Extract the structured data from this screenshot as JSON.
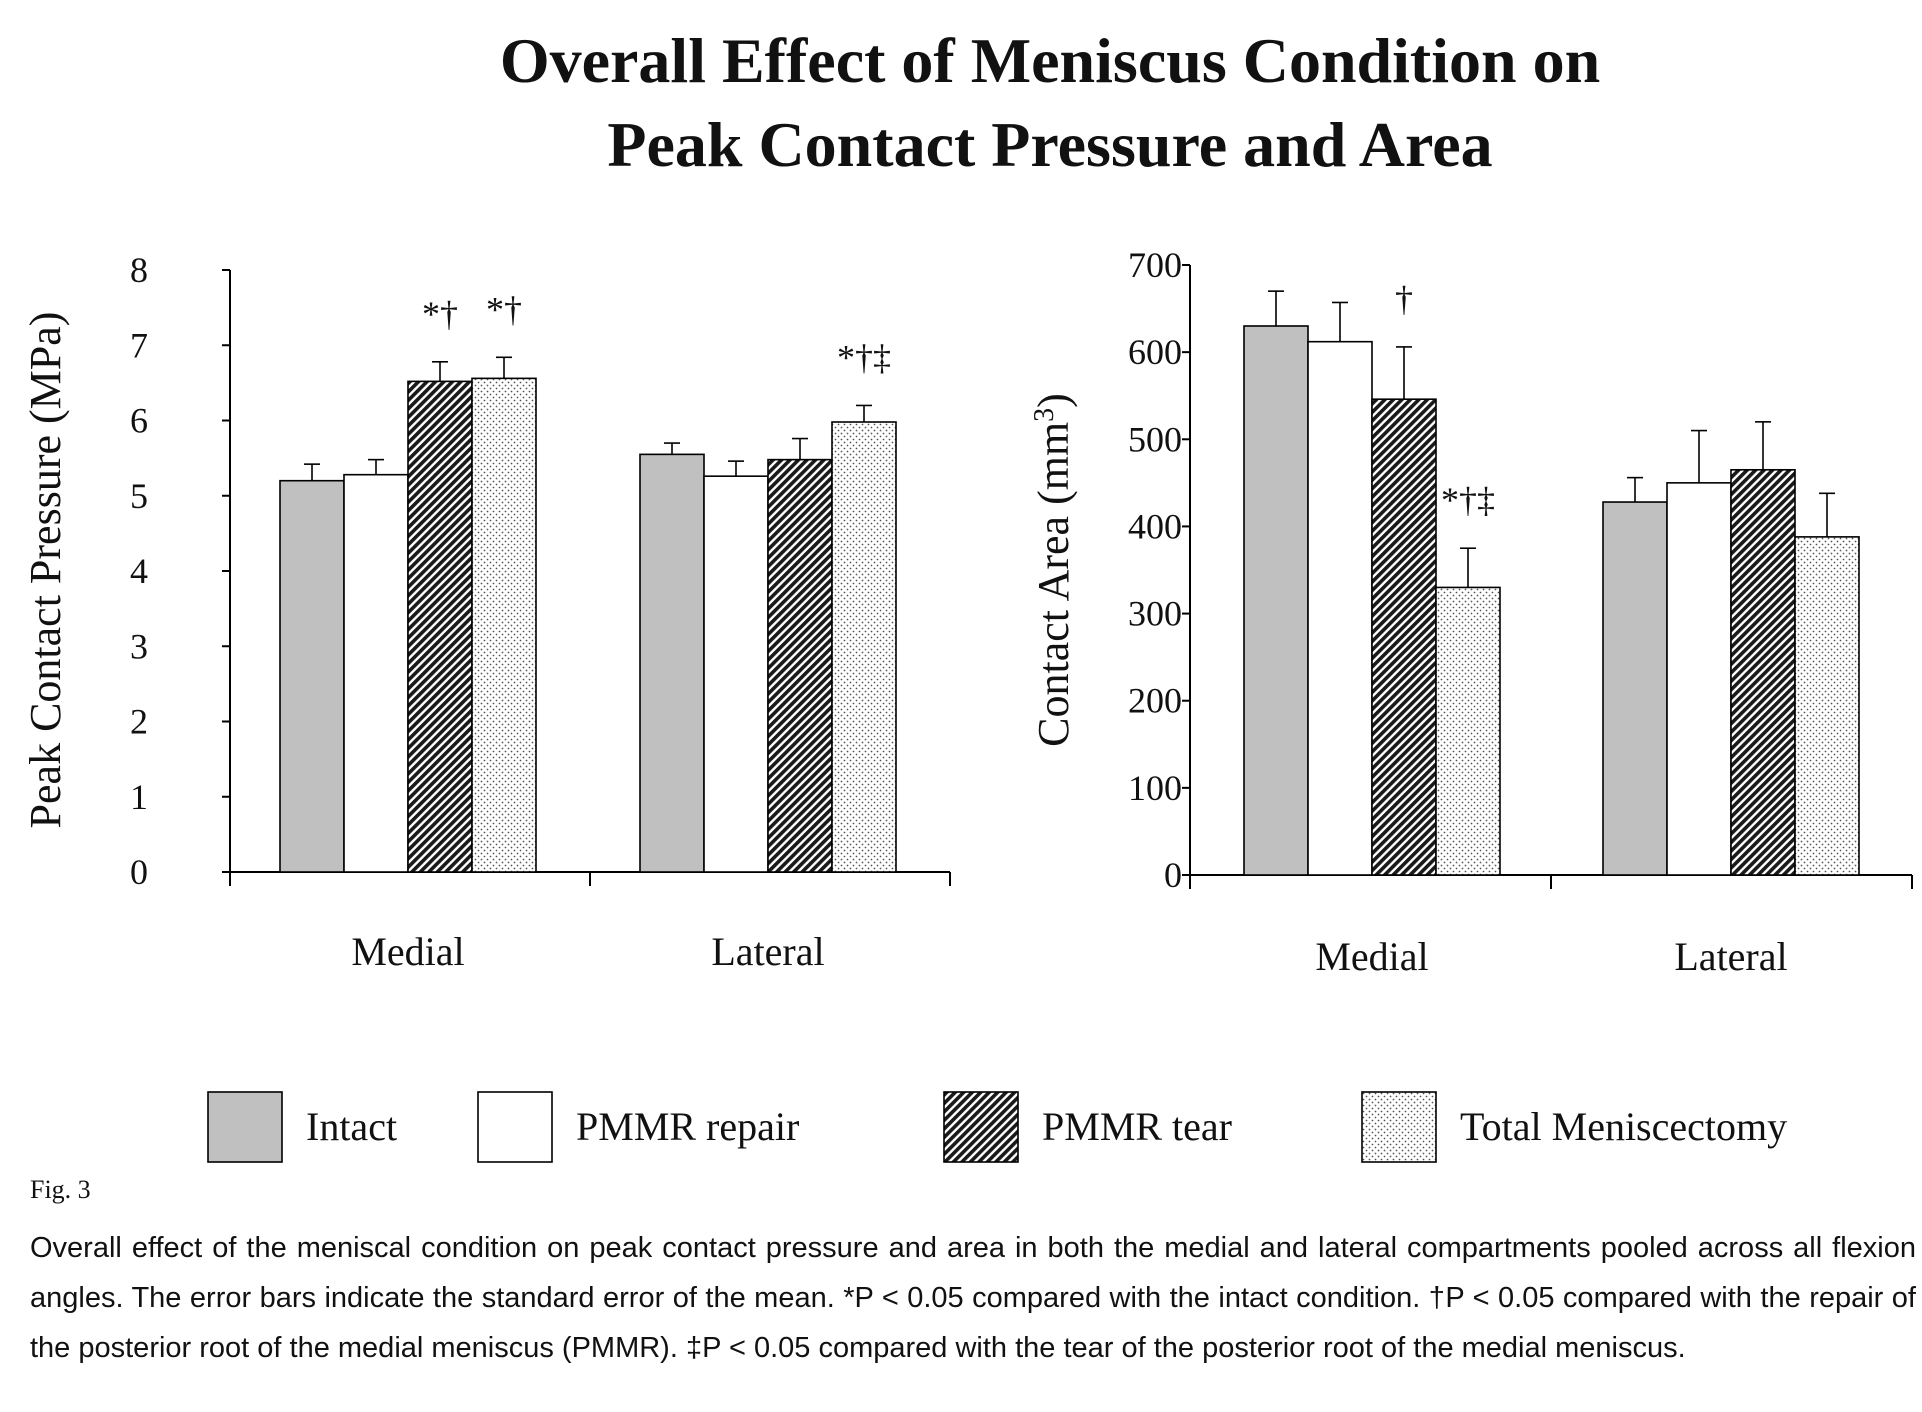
{
  "figure_title": [
    "Overall Effect of Meniscus Condition on",
    "Peak Contact Pressure and Area"
  ],
  "colors": {
    "intact": "#c0c0c0",
    "pmmr_repair": "#ffffff",
    "pmmr_tear": "#3a3a3a",
    "total_meniscectomy": "#f3f3f3"
  },
  "legend": [
    {
      "key": "intact",
      "label": "Intact",
      "pattern": "solid-gray"
    },
    {
      "key": "pmmr_repair",
      "label": "PMMR repair",
      "pattern": "solid-white"
    },
    {
      "key": "pmmr_tear",
      "label": "PMMR tear",
      "pattern": "diagonal-hatch"
    },
    {
      "key": "total_meniscectomy",
      "label": "Total Meniscectomy",
      "pattern": "dotted"
    }
  ],
  "chart_data": [
    {
      "type": "bar",
      "title": "",
      "ylabel": "Peak Contact Pressure (MPa)",
      "xlabel": "",
      "categories": [
        "Medial",
        "Lateral"
      ],
      "ylim": [
        0,
        8
      ],
      "yticks": [
        0,
        1,
        2,
        3,
        4,
        5,
        6,
        7,
        8
      ],
      "series": [
        {
          "key": "intact",
          "name": "Intact",
          "values": [
            5.2,
            5.55
          ],
          "errors": [
            0.22,
            0.15
          ]
        },
        {
          "key": "pmmr_repair",
          "name": "PMMR repair",
          "values": [
            5.28,
            5.26
          ],
          "errors": [
            0.2,
            0.2
          ]
        },
        {
          "key": "pmmr_tear",
          "name": "PMMR tear",
          "values": [
            6.52,
            5.48
          ],
          "errors": [
            0.26,
            0.28
          ]
        },
        {
          "key": "total_meniscectomy",
          "name": "Total Meniscectomy",
          "values": [
            6.56,
            5.98
          ],
          "errors": [
            0.28,
            0.22
          ]
        }
      ],
      "annotations": [
        {
          "category": "Medial",
          "series": "pmmr_tear",
          "text": "*†"
        },
        {
          "category": "Medial",
          "series": "total_meniscectomy",
          "text": "*†"
        },
        {
          "category": "Lateral",
          "series": "total_meniscectomy",
          "text": "*†‡"
        }
      ]
    },
    {
      "type": "bar",
      "title": "",
      "ylabel": "Contact Area (mm",
      "ylabel_sup": "3",
      "ylabel_close": ")",
      "xlabel": "",
      "categories": [
        "Medial",
        "Lateral"
      ],
      "ylim": [
        0,
        700
      ],
      "yticks": [
        0,
        100,
        200,
        300,
        400,
        500,
        600,
        700
      ],
      "series": [
        {
          "key": "intact",
          "name": "Intact",
          "values": [
            630,
            428
          ],
          "errors": [
            40,
            28
          ]
        },
        {
          "key": "pmmr_repair",
          "name": "PMMR repair",
          "values": [
            612,
            450
          ],
          "errors": [
            45,
            60
          ]
        },
        {
          "key": "pmmr_tear",
          "name": "PMMR tear",
          "values": [
            546,
            465
          ],
          "errors": [
            60,
            55
          ]
        },
        {
          "key": "total_meniscectomy",
          "name": "Total Meniscectomy",
          "values": [
            330,
            388
          ],
          "errors": [
            45,
            50
          ]
        }
      ],
      "annotations": [
        {
          "category": "Medial",
          "series": "pmmr_tear",
          "text": "†"
        },
        {
          "category": "Medial",
          "series": "total_meniscectomy",
          "text": "*†‡"
        }
      ]
    }
  ],
  "caption": {
    "label": "Fig. 3",
    "text": "Overall effect of the meniscal condition on peak contact pressure and area in both the medial and lateral compartments pooled across all flexion angles. The error bars indicate the standard error of the mean. *P < 0.05 compared with the intact condition. †P < 0.05 compared with the repair of the posterior root of the medial meniscus (PMMR). ‡P < 0.05 compared with the tear of the posterior root of the medial meniscus."
  }
}
